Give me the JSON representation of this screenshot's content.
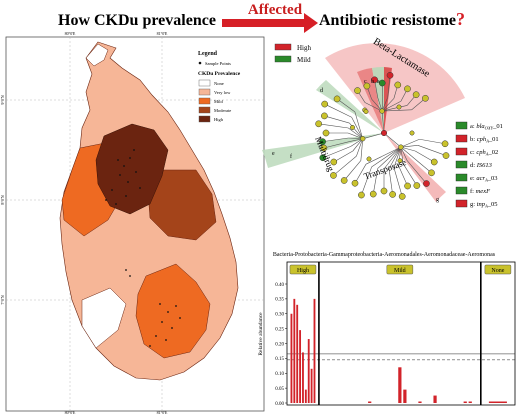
{
  "header": {
    "left_title": "How CKDu prevalence",
    "arrow_label": "Affected",
    "right_title": "Antibiotic resistome",
    "question_mark": "?"
  },
  "map": {
    "legend": {
      "title": "Legend",
      "sample_points_label": "Sample Points",
      "prevalence_title": "CKDu Prevalence",
      "levels": [
        {
          "label": "None",
          "color": "#ffffff"
        },
        {
          "label": "Very low",
          "color": "#f6b697"
        },
        {
          "label": "Mild",
          "color": "#ee6a22"
        },
        {
          "label": "Moderate",
          "color": "#a4441a"
        },
        {
          "label": "High",
          "color": "#6b2410"
        }
      ]
    },
    "top_ticks": [
      "80°0'E",
      "81°0'E"
    ],
    "bottom_ticks": [
      "80°0'E",
      "81°0'E"
    ],
    "left_ticks": [
      "9°0'N",
      "8°0'N",
      "7°0'N"
    ]
  },
  "tree": {
    "legend_items": [
      {
        "label": "High",
        "color": "#d2232a"
      },
      {
        "label": "Mild",
        "color": "#2a8a2a"
      }
    ],
    "sector_labels": {
      "beta": "Beta-Lactamase",
      "multidrug": "Multidrug",
      "transposase": "Transposase"
    },
    "node_letters": [
      "a",
      "b",
      "c",
      "d",
      "e",
      "f",
      "g"
    ],
    "gene_legend": [
      {
        "letter": "a:",
        "name": "bla",
        "sub": "OXY",
        "suffix": "_01",
        "color": "#2a8a2a"
      },
      {
        "letter": "b:",
        "name": "cph",
        "sub": "A",
        "suffix": "_01",
        "color": "#d2232a"
      },
      {
        "letter": "c:",
        "name": "cph",
        "sub": "A",
        "suffix": "_02",
        "color": "#d2232a"
      },
      {
        "letter": "d:",
        "name": "IS613",
        "sub": "",
        "suffix": "",
        "color": "#2a8a2a"
      },
      {
        "letter": "e:",
        "name": "acr",
        "sub": "A",
        "suffix": "_03",
        "color": "#2a8a2a"
      },
      {
        "letter": "f:",
        "name": "mexF",
        "sub": "",
        "suffix": "",
        "color": "#2a8a2a"
      },
      {
        "letter": "g:",
        "name": "tnp",
        "sub": "A",
        "suffix": "_05",
        "color": "#d2232a"
      }
    ]
  },
  "chart_data": {
    "type": "bar",
    "title": "Bacteria-Protobacteria-Gammaproteobacteria-Aeromonadales-Aeromonadaceae-Aeromonas",
    "ylabel": "Relative abundance",
    "ylim": [
      0,
      0.4
    ],
    "yticks": [
      "0.00",
      "0.05",
      "0.10",
      "0.15",
      "0.20",
      "0.25",
      "0.30",
      "0.35",
      "0.40"
    ],
    "groups": [
      {
        "name": "High",
        "values": [
          0.3,
          0.35,
          0.33,
          0.245,
          0.17,
          0.045,
          0.215,
          0.115,
          0.35
        ]
      },
      {
        "name": "Mild",
        "values": [
          0.0,
          0.0,
          0.0,
          0.0,
          0.0,
          0.0,
          0.0,
          0.0,
          0.0,
          0.005,
          0.0,
          0.0,
          0.0,
          0.0,
          0.0,
          0.12,
          0.045,
          0.0,
          0.0,
          0.005,
          0.0,
          0.0,
          0.025,
          0.0,
          0.0,
          0.0,
          0.0,
          0.0,
          0.005,
          0.005,
          0.0
        ]
      },
      {
        "name": "None",
        "values": [
          0.005
        ]
      }
    ],
    "reference_lines": [
      0.145,
      0.165
    ]
  }
}
